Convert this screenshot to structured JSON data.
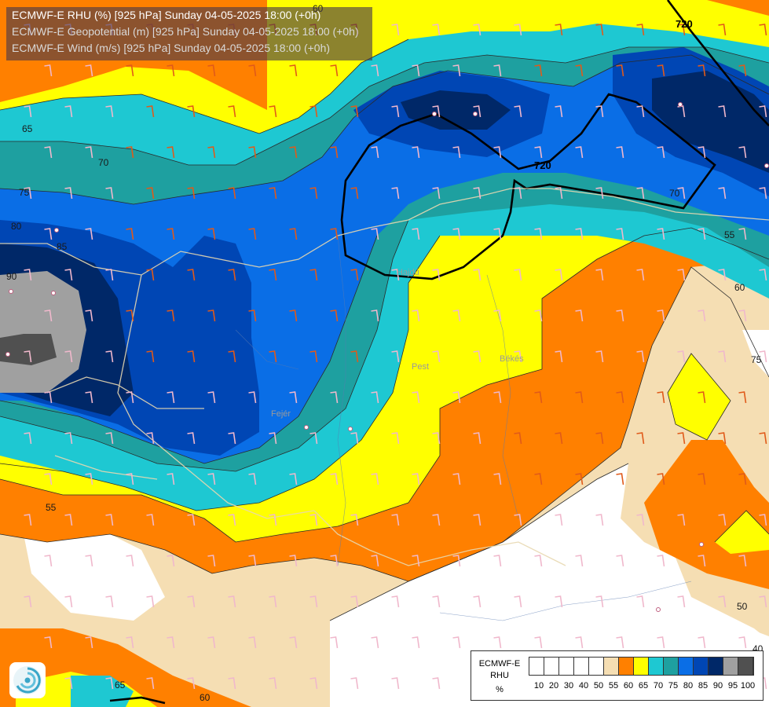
{
  "header": {
    "line1": "ECMWF-E RHU (%) [925 hPa] Sunday 04-05-2025 18:00 (+0h)",
    "line2": "ECMWF-E Geopotential (m) [925 hPa] Sunday 04-05-2025 18:00 (+0h)",
    "line3": "ECMWF-E Wind (m/s) [925 hPa] Sunday 04-05-2025 18:00 (+0h)"
  },
  "legend": {
    "title_line1": "ECMWF-E",
    "title_line2": "RHU",
    "unit": "%",
    "ticks": [
      "10",
      "20",
      "30",
      "40",
      "50",
      "55",
      "60",
      "65",
      "70",
      "75",
      "80",
      "85",
      "90",
      "95",
      "100"
    ],
    "colors": [
      "#ffffff",
      "#ffffff",
      "#ffffff",
      "#ffffff",
      "#ffffff",
      "#f5deb3",
      "#ff8000",
      "#ffff00",
      "#1ec8d2",
      "#1ea0a0",
      "#0a6ee6",
      "#0046b4",
      "#002868",
      "#a0a0a0",
      "#505050"
    ]
  },
  "contour_labels": {
    "rhu": [
      "65",
      "70",
      "75",
      "80",
      "85",
      "90",
      "60",
      "55",
      "50",
      "55",
      "60",
      "65",
      "70",
      "75",
      "40",
      "60"
    ],
    "geopotential": [
      "720",
      "720"
    ]
  },
  "place_labels": [
    "Pest",
    "Békés",
    "Hajdú",
    "Fejér"
  ],
  "icons": {
    "logo": "swirl-logo-icon"
  }
}
